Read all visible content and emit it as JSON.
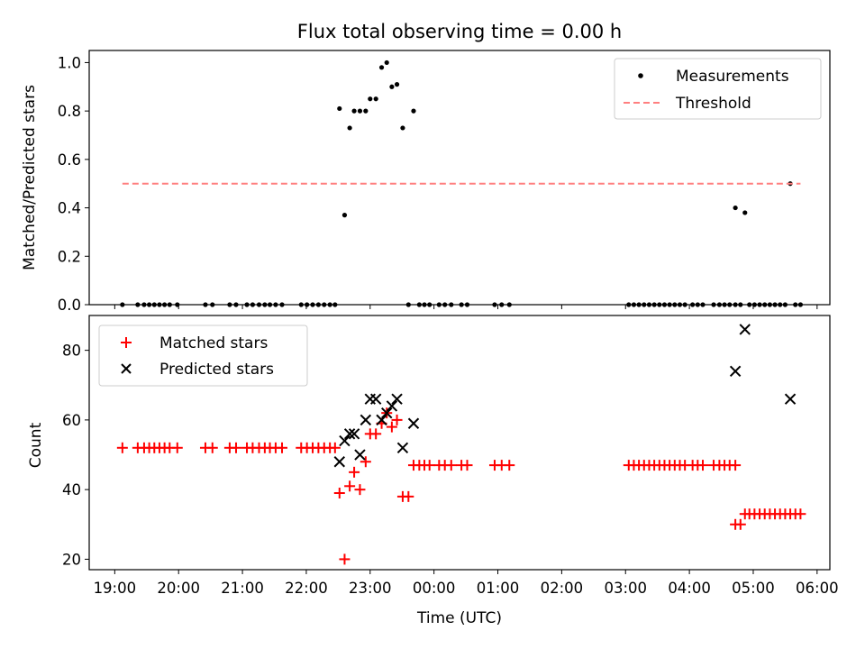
{
  "colors": {
    "measurement": "#000000",
    "threshold": "#ff7f7f",
    "matched": "#ff0000",
    "predicted": "#000000",
    "axes": "#000000",
    "legend_border": "#cccccc"
  },
  "title": "Flux total observing time = 0.00 h",
  "xlabel": "Time (UTC)",
  "x_ticks": [
    "19:00",
    "20:00",
    "21:00",
    "22:00",
    "23:00",
    "00:00",
    "01:00",
    "02:00",
    "03:00",
    "04:00",
    "05:00",
    "06:00"
  ],
  "chart_data": [
    {
      "type": "scatter",
      "ylabel": "Matched/Predicted stars",
      "x_unit": "hours since 19:00 UTC",
      "xlim": [
        -0.4,
        11.2
      ],
      "ylim": [
        0.0,
        1.05
      ],
      "y_ticks": [
        "0.0",
        "0.2",
        "0.4",
        "0.6",
        "0.8",
        "1.0"
      ],
      "legend_position": "upper right",
      "series": [
        {
          "name": "Measurements",
          "kind": "points",
          "points": [
            [
              0.12,
              0
            ],
            [
              0.36,
              0
            ],
            [
              0.46,
              0
            ],
            [
              0.54,
              0
            ],
            [
              0.62,
              0
            ],
            [
              0.7,
              0
            ],
            [
              0.78,
              0
            ],
            [
              0.86,
              0
            ],
            [
              0.98,
              0
            ],
            [
              1.42,
              0
            ],
            [
              1.53,
              0
            ],
            [
              1.8,
              0
            ],
            [
              1.9,
              0
            ],
            [
              2.07,
              0
            ],
            [
              2.16,
              0
            ],
            [
              2.26,
              0
            ],
            [
              2.35,
              0
            ],
            [
              2.43,
              0
            ],
            [
              2.52,
              0
            ],
            [
              2.62,
              0
            ],
            [
              2.92,
              0
            ],
            [
              3.01,
              0
            ],
            [
              3.1,
              0
            ],
            [
              3.19,
              0
            ],
            [
              3.28,
              0
            ],
            [
              3.37,
              0
            ],
            [
              3.45,
              0
            ],
            [
              3.52,
              0.81
            ],
            [
              3.6,
              0.37
            ],
            [
              3.68,
              0.73
            ],
            [
              3.75,
              0.8
            ],
            [
              3.84,
              0.8
            ],
            [
              3.93,
              0.8
            ],
            [
              4.0,
              0.85
            ],
            [
              4.09,
              0.85
            ],
            [
              4.18,
              0.98
            ],
            [
              4.26,
              1.0
            ],
            [
              4.34,
              0.9
            ],
            [
              4.42,
              0.91
            ],
            [
              4.51,
              0.73
            ],
            [
              4.6,
              0.0
            ],
            [
              4.68,
              0.8
            ],
            [
              4.77,
              0
            ],
            [
              4.85,
              0
            ],
            [
              4.93,
              0
            ],
            [
              5.08,
              0
            ],
            [
              5.17,
              0
            ],
            [
              5.27,
              0
            ],
            [
              5.43,
              0
            ],
            [
              5.52,
              0
            ],
            [
              5.95,
              0
            ],
            [
              6.06,
              0
            ],
            [
              6.18,
              0
            ],
            [
              8.05,
              0
            ],
            [
              8.13,
              0
            ],
            [
              8.21,
              0
            ],
            [
              8.29,
              0
            ],
            [
              8.37,
              0
            ],
            [
              8.45,
              0
            ],
            [
              8.53,
              0
            ],
            [
              8.61,
              0
            ],
            [
              8.69,
              0
            ],
            [
              8.77,
              0
            ],
            [
              8.85,
              0
            ],
            [
              8.93,
              0
            ],
            [
              9.05,
              0
            ],
            [
              9.13,
              0
            ],
            [
              9.21,
              0
            ],
            [
              9.38,
              0
            ],
            [
              9.47,
              0
            ],
            [
              9.55,
              0
            ],
            [
              9.63,
              0
            ],
            [
              9.72,
              0
            ],
            [
              9.72,
              0.4
            ],
            [
              9.8,
              0
            ],
            [
              9.87,
              0.38
            ],
            [
              9.94,
              0
            ],
            [
              10.02,
              0
            ],
            [
              10.1,
              0
            ],
            [
              10.18,
              0
            ],
            [
              10.26,
              0
            ],
            [
              10.34,
              0
            ],
            [
              10.42,
              0
            ],
            [
              10.5,
              0
            ],
            [
              10.58,
              0.5
            ],
            [
              10.66,
              0
            ],
            [
              10.74,
              0
            ]
          ]
        },
        {
          "name": "Threshold",
          "kind": "dashed-line",
          "points": [
            [
              0.12,
              0.5
            ],
            [
              10.74,
              0.5
            ]
          ]
        }
      ]
    },
    {
      "type": "scatter",
      "ylabel": "Count",
      "x_unit": "hours since 19:00 UTC",
      "xlim": [
        -0.4,
        11.2
      ],
      "ylim": [
        17,
        90
      ],
      "y_ticks": [
        "20",
        "40",
        "60",
        "80"
      ],
      "legend_position": "upper left",
      "series": [
        {
          "name": "Matched stars",
          "kind": "plus",
          "points": [
            [
              0.12,
              52
            ],
            [
              0.36,
              52
            ],
            [
              0.46,
              52
            ],
            [
              0.54,
              52
            ],
            [
              0.62,
              52
            ],
            [
              0.7,
              52
            ],
            [
              0.78,
              52
            ],
            [
              0.86,
              52
            ],
            [
              0.98,
              52
            ],
            [
              1.42,
              52
            ],
            [
              1.53,
              52
            ],
            [
              1.8,
              52
            ],
            [
              1.9,
              52
            ],
            [
              2.07,
              52
            ],
            [
              2.16,
              52
            ],
            [
              2.26,
              52
            ],
            [
              2.35,
              52
            ],
            [
              2.43,
              52
            ],
            [
              2.52,
              52
            ],
            [
              2.62,
              52
            ],
            [
              2.92,
              52
            ],
            [
              3.01,
              52
            ],
            [
              3.1,
              52
            ],
            [
              3.19,
              52
            ],
            [
              3.28,
              52
            ],
            [
              3.37,
              52
            ],
            [
              3.45,
              52
            ],
            [
              3.52,
              39
            ],
            [
              3.6,
              20
            ],
            [
              3.68,
              41
            ],
            [
              3.75,
              45
            ],
            [
              3.84,
              40
            ],
            [
              3.93,
              48
            ],
            [
              4.0,
              56
            ],
            [
              4.09,
              56
            ],
            [
              4.18,
              59
            ],
            [
              4.26,
              62
            ],
            [
              4.34,
              58
            ],
            [
              4.42,
              60
            ],
            [
              4.51,
              38
            ],
            [
              4.6,
              38
            ],
            [
              4.68,
              47
            ],
            [
              4.77,
              47
            ],
            [
              4.85,
              47
            ],
            [
              4.93,
              47
            ],
            [
              5.08,
              47
            ],
            [
              5.17,
              47
            ],
            [
              5.27,
              47
            ],
            [
              5.43,
              47
            ],
            [
              5.52,
              47
            ],
            [
              5.95,
              47
            ],
            [
              6.06,
              47
            ],
            [
              6.18,
              47
            ],
            [
              8.05,
              47
            ],
            [
              8.13,
              47
            ],
            [
              8.21,
              47
            ],
            [
              8.29,
              47
            ],
            [
              8.37,
              47
            ],
            [
              8.45,
              47
            ],
            [
              8.53,
              47
            ],
            [
              8.61,
              47
            ],
            [
              8.69,
              47
            ],
            [
              8.77,
              47
            ],
            [
              8.85,
              47
            ],
            [
              8.93,
              47
            ],
            [
              9.05,
              47
            ],
            [
              9.13,
              47
            ],
            [
              9.21,
              47
            ],
            [
              9.38,
              47
            ],
            [
              9.47,
              47
            ],
            [
              9.55,
              47
            ],
            [
              9.63,
              47
            ],
            [
              9.72,
              47
            ],
            [
              9.72,
              30
            ],
            [
              9.8,
              30
            ],
            [
              9.87,
              33
            ],
            [
              9.94,
              33
            ],
            [
              10.02,
              33
            ],
            [
              10.1,
              33
            ],
            [
              10.18,
              33
            ],
            [
              10.26,
              33
            ],
            [
              10.34,
              33
            ],
            [
              10.42,
              33
            ],
            [
              10.5,
              33
            ],
            [
              10.58,
              33
            ],
            [
              10.66,
              33
            ],
            [
              10.74,
              33
            ]
          ]
        },
        {
          "name": "Predicted stars",
          "kind": "x",
          "points": [
            [
              3.52,
              48
            ],
            [
              3.6,
              54
            ],
            [
              3.68,
              56
            ],
            [
              3.75,
              56
            ],
            [
              3.84,
              50
            ],
            [
              3.93,
              60
            ],
            [
              4.0,
              66
            ],
            [
              4.09,
              66
            ],
            [
              4.18,
              60
            ],
            [
              4.26,
              62
            ],
            [
              4.34,
              64
            ],
            [
              4.42,
              66
            ],
            [
              4.51,
              52
            ],
            [
              4.68,
              59
            ],
            [
              9.72,
              74
            ],
            [
              9.87,
              86
            ],
            [
              10.58,
              66
            ]
          ]
        }
      ]
    }
  ]
}
